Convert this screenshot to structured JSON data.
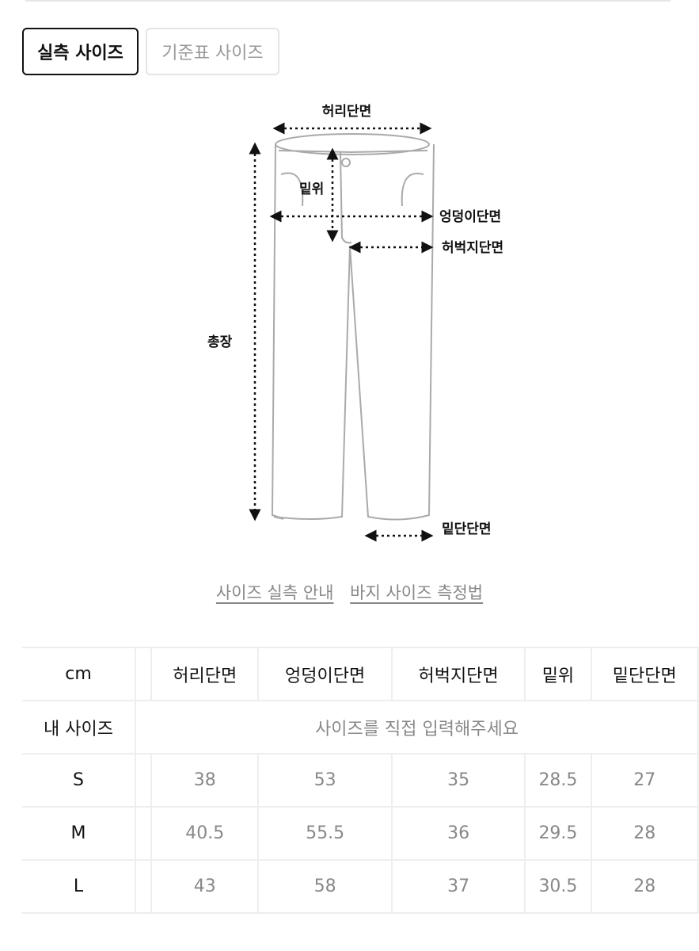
{
  "tabs": [
    {
      "label": "실측 사이즈",
      "active": true
    },
    {
      "label": "기준표 사이즈",
      "active": false
    }
  ],
  "diagram": {
    "waist": "허리단면",
    "rise": "밑위",
    "hip": "엉덩이단면",
    "thigh": "허벅지단면",
    "length": "총장",
    "hem": "밑단단면"
  },
  "links": [
    "사이즈 실측 안내",
    "바지 사이즈 측정법"
  ],
  "table": {
    "unit": "cm",
    "headers": [
      "허리단면",
      "엉덩이단면",
      "허벅지단면",
      "밑위",
      "밑단단면"
    ],
    "my_size_label": "내 사이즈",
    "my_size_placeholder": "사이즈를 직접 입력해주세요",
    "rows": [
      {
        "size": "S",
        "values": [
          "38",
          "53",
          "35",
          "28.5",
          "27"
        ]
      },
      {
        "size": "M",
        "values": [
          "40.5",
          "55.5",
          "36",
          "29.5",
          "28"
        ]
      },
      {
        "size": "L",
        "values": [
          "43",
          "58",
          "37",
          "30.5",
          "28"
        ]
      }
    ]
  }
}
